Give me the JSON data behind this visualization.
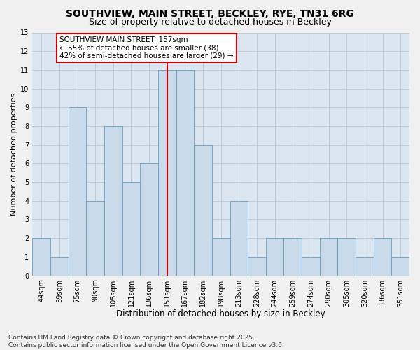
{
  "title": "SOUTHVIEW, MAIN STREET, BECKLEY, RYE, TN31 6RG",
  "subtitle": "Size of property relative to detached houses in Beckley",
  "xlabel": "Distribution of detached houses by size in Beckley",
  "ylabel": "Number of detached properties",
  "categories": [
    "44sqm",
    "59sqm",
    "75sqm",
    "90sqm",
    "105sqm",
    "121sqm",
    "136sqm",
    "151sqm",
    "167sqm",
    "182sqm",
    "198sqm",
    "213sqm",
    "228sqm",
    "244sqm",
    "259sqm",
    "274sqm",
    "290sqm",
    "305sqm",
    "320sqm",
    "336sqm",
    "351sqm"
  ],
  "values": [
    2,
    1,
    9,
    4,
    8,
    5,
    6,
    11,
    11,
    7,
    2,
    4,
    1,
    2,
    2,
    1,
    2,
    2,
    1,
    2,
    1
  ],
  "bar_color": "#c9daea",
  "bar_edge_color": "#6a9fbf",
  "highlighted_index": 7,
  "highlight_line_color": "#cc0000",
  "annotation_text": "SOUTHVIEW MAIN STREET: 157sqm\n← 55% of detached houses are smaller (38)\n42% of semi-detached houses are larger (29) →",
  "annotation_box_color": "#ffffff",
  "annotation_box_edge": "#cc0000",
  "ylim": [
    0,
    13
  ],
  "yticks": [
    0,
    1,
    2,
    3,
    4,
    5,
    6,
    7,
    8,
    9,
    10,
    11,
    12,
    13
  ],
  "grid_color": "#b8c8d8",
  "plot_bg_color": "#dce6f0",
  "fig_bg_color": "#f0f0f0",
  "footer": "Contains HM Land Registry data © Crown copyright and database right 2025.\nContains public sector information licensed under the Open Government Licence v3.0.",
  "title_fontsize": 10,
  "subtitle_fontsize": 9,
  "tick_fontsize": 7,
  "xlabel_fontsize": 8.5,
  "ylabel_fontsize": 8,
  "footer_fontsize": 6.5,
  "annotation_fontsize": 7.5
}
